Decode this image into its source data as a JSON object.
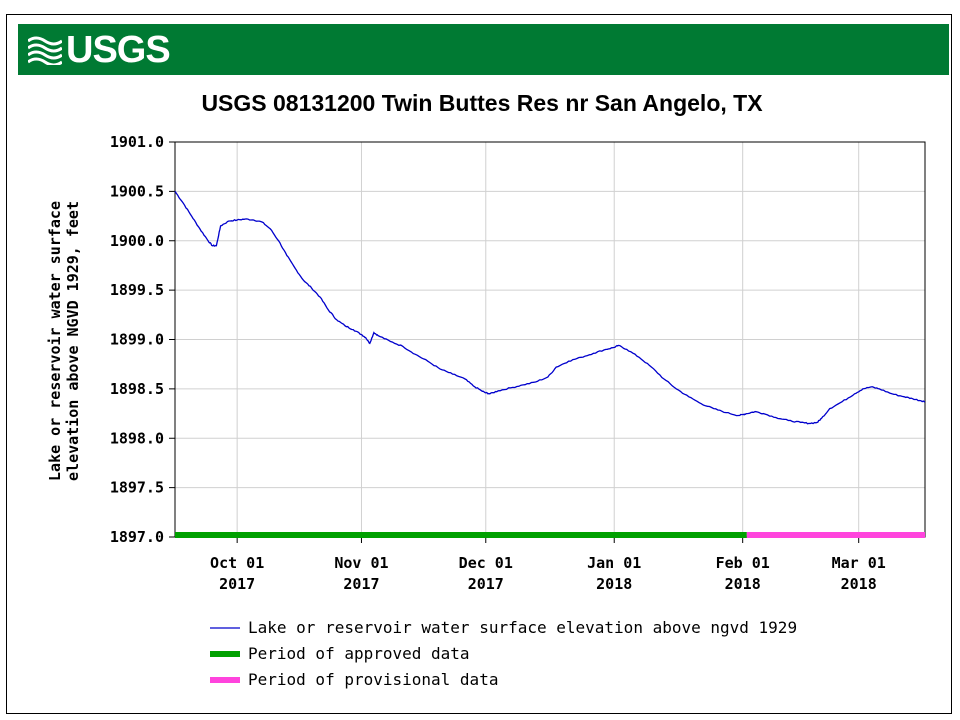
{
  "header": {
    "logo_text": "USGS",
    "brand_color": "#007a33"
  },
  "chart_data": {
    "type": "line",
    "title": "USGS 08131200 Twin Buttes Res nr San Angelo, TX",
    "ylabel_line1": "Lake or reservoir water surface",
    "ylabel_line2": "elevation above NGVD 1929, feet",
    "xlabel": "",
    "ylim": [
      1897.0,
      1901.0
    ],
    "y_ticks": [
      "1901.0",
      "1900.5",
      "1900.0",
      "1899.5",
      "1899.0",
      "1898.5",
      "1898.0",
      "1897.5",
      "1897.0"
    ],
    "x_range_days": [
      0,
      181
    ],
    "x_ticks": [
      {
        "day": 15,
        "line1": "Oct 01",
        "line2": "2017"
      },
      {
        "day": 45,
        "line1": "Nov 01",
        "line2": "2017"
      },
      {
        "day": 75,
        "line1": "Dec 01",
        "line2": "2017"
      },
      {
        "day": 106,
        "line1": "Jan 01",
        "line2": "2018"
      },
      {
        "day": 137,
        "line1": "Feb 01",
        "line2": "2018"
      },
      {
        "day": 165,
        "line1": "Mar 01",
        "line2": "2018"
      }
    ],
    "series": [
      {
        "name": "Lake or reservoir water surface elevation above ngvd 1929",
        "color": "#0000cc",
        "points": [
          [
            0,
            1900.5
          ],
          [
            2,
            1900.38
          ],
          [
            4,
            1900.25
          ],
          [
            6,
            1900.12
          ],
          [
            8,
            1900.0
          ],
          [
            9,
            1899.95
          ],
          [
            10,
            1899.95
          ],
          [
            11,
            1900.15
          ],
          [
            13,
            1900.2
          ],
          [
            15,
            1900.21
          ],
          [
            17,
            1900.22
          ],
          [
            19,
            1900.21
          ],
          [
            21,
            1900.19
          ],
          [
            23,
            1900.12
          ],
          [
            25,
            1900.0
          ],
          [
            27,
            1899.85
          ],
          [
            29,
            1899.72
          ],
          [
            31,
            1899.6
          ],
          [
            33,
            1899.52
          ],
          [
            35,
            1899.43
          ],
          [
            37,
            1899.3
          ],
          [
            39,
            1899.2
          ],
          [
            41,
            1899.14
          ],
          [
            43,
            1899.1
          ],
          [
            45,
            1899.05
          ],
          [
            46,
            1899.02
          ],
          [
            47,
            1898.96
          ],
          [
            48,
            1899.07
          ],
          [
            49,
            1899.04
          ],
          [
            52,
            1898.98
          ],
          [
            55,
            1898.93
          ],
          [
            58,
            1898.85
          ],
          [
            61,
            1898.78
          ],
          [
            64,
            1898.7
          ],
          [
            67,
            1898.65
          ],
          [
            70,
            1898.6
          ],
          [
            72,
            1898.53
          ],
          [
            74,
            1898.48
          ],
          [
            75,
            1898.46
          ],
          [
            76,
            1898.45
          ],
          [
            78,
            1898.48
          ],
          [
            81,
            1898.51
          ],
          [
            84,
            1898.54
          ],
          [
            87,
            1898.57
          ],
          [
            90,
            1898.62
          ],
          [
            92,
            1898.72
          ],
          [
            95,
            1898.78
          ],
          [
            98,
            1898.82
          ],
          [
            101,
            1898.86
          ],
          [
            104,
            1898.9
          ],
          [
            106,
            1898.92
          ],
          [
            107,
            1898.94
          ],
          [
            109,
            1898.9
          ],
          [
            112,
            1898.82
          ],
          [
            115,
            1898.72
          ],
          [
            118,
            1898.6
          ],
          [
            121,
            1898.5
          ],
          [
            124,
            1898.42
          ],
          [
            127,
            1898.35
          ],
          [
            130,
            1898.3
          ],
          [
            133,
            1898.26
          ],
          [
            136,
            1898.23
          ],
          [
            137,
            1898.24
          ],
          [
            138,
            1898.25
          ],
          [
            140,
            1898.27
          ],
          [
            142,
            1898.25
          ],
          [
            145,
            1898.21
          ],
          [
            148,
            1898.18
          ],
          [
            151,
            1898.16
          ],
          [
            153,
            1898.15
          ],
          [
            155,
            1898.16
          ],
          [
            156,
            1898.2
          ],
          [
            158,
            1898.3
          ],
          [
            161,
            1898.37
          ],
          [
            164,
            1898.45
          ],
          [
            166,
            1898.5
          ],
          [
            168,
            1898.52
          ],
          [
            170,
            1898.5
          ],
          [
            173,
            1898.45
          ],
          [
            176,
            1898.42
          ],
          [
            178,
            1898.4
          ],
          [
            180,
            1898.38
          ],
          [
            181,
            1898.37
          ]
        ]
      }
    ],
    "periods": [
      {
        "name": "Period of approved data",
        "color": "#00a000",
        "start_day": 0,
        "end_day": 138
      },
      {
        "name": "Period of provisional data",
        "color": "#ff44dd",
        "start_day": 138,
        "end_day": 181
      }
    ],
    "legend": [
      {
        "label": "Lake or reservoir water surface elevation above ngvd 1929",
        "color": "#0000cc",
        "style": "thin"
      },
      {
        "label": "Period of approved data",
        "color": "#00a000",
        "style": "thick"
      },
      {
        "label": "Period of provisional data",
        "color": "#ff44dd",
        "style": "thick"
      }
    ],
    "legend_position": "bottom"
  }
}
